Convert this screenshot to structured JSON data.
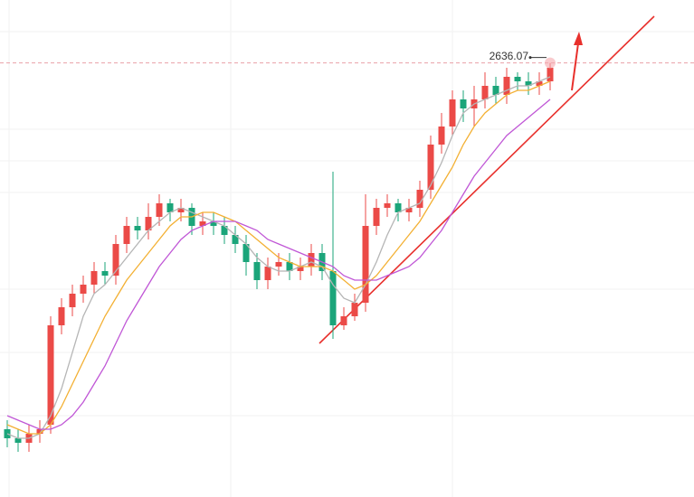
{
  "chart_data": {
    "type": "candlestick",
    "open": [
      2555,
      2553,
      2552,
      2554,
      2556,
      2578,
      2582,
      2585,
      2587,
      2590,
      2589,
      2596,
      2600,
      2599,
      2602,
      2605,
      2603,
      2604,
      2600,
      2601,
      2600,
      2598,
      2596,
      2592,
      2588,
      2591,
      2592,
      2590,
      2591,
      2594,
      2590,
      2578,
      2580,
      2583,
      2600,
      2604,
      2605,
      2603,
      2604,
      2608,
      2618,
      2622,
      2628,
      2626,
      2628,
      2631,
      2629,
      2633,
      2632,
      2631,
      2632
    ],
    "high": [
      2557,
      2555,
      2556,
      2557,
      2580,
      2584,
      2587,
      2589,
      2592,
      2592,
      2598,
      2602,
      2602,
      2605,
      2607,
      2606,
      2606,
      2605,
      2603,
      2603,
      2602,
      2600,
      2598,
      2594,
      2593,
      2594,
      2594,
      2593,
      2596,
      2596,
      2612,
      2582,
      2585,
      2607,
      2606,
      2607,
      2606,
      2606,
      2610,
      2620,
      2625,
      2630,
      2630,
      2631,
      2634,
      2633,
      2635,
      2634,
      2634,
      2634,
      2636.07
    ],
    "low": [
      2551,
      2550,
      2550,
      2552,
      2554,
      2576,
      2580,
      2583,
      2585,
      2587,
      2587,
      2594,
      2597,
      2597,
      2600,
      2601,
      2601,
      2598,
      2598,
      2598,
      2596,
      2594,
      2589,
      2586,
      2586,
      2589,
      2588,
      2588,
      2589,
      2588,
      2575,
      2577,
      2579,
      2581,
      2598,
      2602,
      2601,
      2601,
      2602,
      2606,
      2616,
      2620,
      2623,
      2622,
      2626,
      2627,
      2627,
      2630,
      2629,
      2629,
      2630
    ],
    "close": [
      2553,
      2552,
      2554,
      2555,
      2578,
      2582,
      2585,
      2587,
      2590,
      2589,
      2596,
      2600,
      2599,
      2602,
      2605,
      2603,
      2604,
      2600,
      2601,
      2600,
      2598,
      2596,
      2592,
      2588,
      2591,
      2592,
      2590,
      2591,
      2594,
      2590,
      2578,
      2580,
      2583,
      2600,
      2604,
      2605,
      2603,
      2604,
      2608,
      2618,
      2622,
      2628,
      2626,
      2628,
      2631,
      2629,
      2633,
      2632,
      2631,
      2632,
      2635
    ],
    "up_color": "#eb4a47",
    "down_color": "#1ba57a",
    "lines": [
      {
        "color": "#b5b5b5",
        "values": [
          2554,
          2553,
          2553,
          2554,
          2558,
          2564,
          2572,
          2580,
          2585,
          2587,
          2590,
          2593,
          2596,
          2599,
          2601,
          2603,
          2604,
          2603,
          2602,
          2601,
          2600,
          2598,
          2596,
          2593,
          2591,
          2590,
          2590,
          2591,
          2592,
          2591,
          2587,
          2584,
          2583,
          2587,
          2592,
          2598,
          2603,
          2604,
          2605,
          2609,
          2614,
          2620,
          2625,
          2627,
          2628,
          2629,
          2630,
          2631,
          2631,
          2632,
          2633
        ]
      },
      {
        "color": "#f3b033",
        "values": [
          2556,
          2555,
          2554,
          2554,
          2556,
          2560,
          2565,
          2570,
          2575,
          2580,
          2584,
          2588,
          2591,
          2594,
          2597,
          2600,
          2602,
          2602,
          2603,
          2603,
          2602,
          2601,
          2599,
          2597,
          2595,
          2593,
          2592,
          2591,
          2591,
          2591,
          2590,
          2588,
          2586,
          2587,
          2589,
          2592,
          2595,
          2598,
          2601,
          2605,
          2609,
          2613,
          2618,
          2622,
          2625,
          2627,
          2629,
          2630,
          2630,
          2631,
          2632
        ]
      },
      {
        "color": "#c057d6",
        "values": [
          2558,
          2557,
          2556,
          2555,
          2555,
          2556,
          2558,
          2561,
          2565,
          2569,
          2574,
          2579,
          2583,
          2587,
          2591,
          2594,
          2597,
          2599,
          2600,
          2601,
          2601,
          2601,
          2600,
          2599,
          2597,
          2596,
          2595,
          2594,
          2593,
          2592,
          2591,
          2589,
          2588,
          2588,
          2588,
          2589,
          2590,
          2591,
          2593,
          2596,
          2599,
          2603,
          2607,
          2611,
          2614,
          2617,
          2620,
          2622,
          2624,
          2626,
          2628
        ]
      }
    ],
    "ylim": [
      2540,
      2650
    ],
    "max_label": "2636.07"
  }
}
